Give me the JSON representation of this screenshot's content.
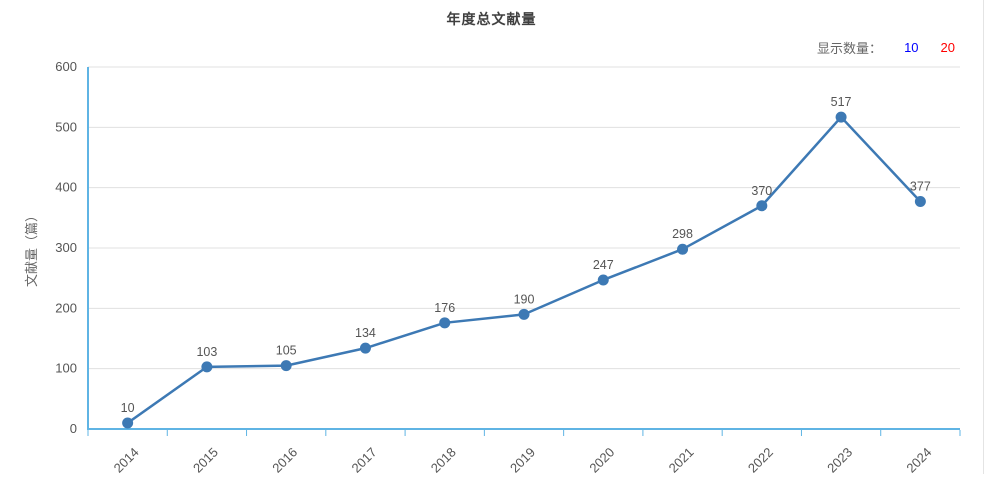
{
  "header": {
    "title": "年度总文献量"
  },
  "controls": {
    "label": "显示数量：",
    "options": [
      {
        "label": "10",
        "color": "#0000ff",
        "active": true
      },
      {
        "label": "20",
        "color": "#ff0000",
        "active": false
      }
    ]
  },
  "chart_data": {
    "type": "line",
    "title": "年度总文献量",
    "categories": [
      "2014",
      "2015",
      "2016",
      "2017",
      "2018",
      "2019",
      "2020",
      "2021",
      "2022",
      "2023",
      "2024"
    ],
    "values": [
      10,
      103,
      105,
      134,
      176,
      190,
      247,
      298,
      370,
      517,
      377
    ],
    "xlabel": "",
    "ylabel": "文献量（篇）",
    "ylim": [
      0,
      600
    ],
    "ytick_interval": 100,
    "grid": true,
    "legend": false,
    "value_labels_shown": true,
    "colors": {
      "line": "#3d79b4",
      "marker": "#3d79b4",
      "axis": "#5fb4e4",
      "grid": "#e0e0e0",
      "tick_label": "#555555",
      "value_label": "#555555",
      "axis_title": "#666666"
    }
  }
}
